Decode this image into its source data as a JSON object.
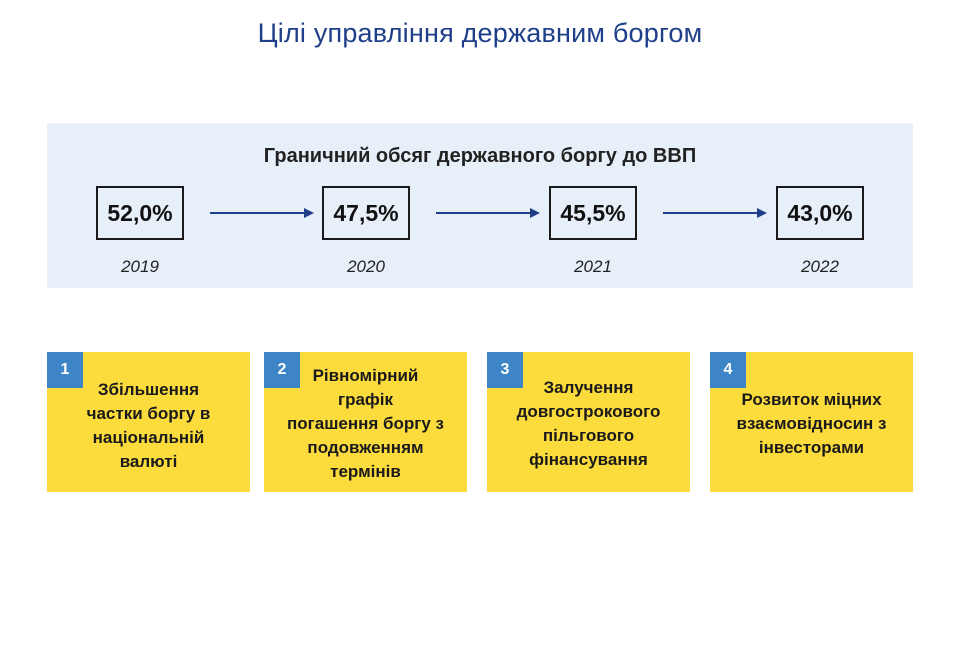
{
  "page": {
    "title": "Цілі управління державним боргом"
  },
  "debt_panel": {
    "title": "Граничний обсяг державного боргу до ВВП",
    "items": [
      {
        "value": "52,0%",
        "year": "2019"
      },
      {
        "value": "47,5%",
        "year": "2020"
      },
      {
        "value": "45,5%",
        "year": "2021"
      },
      {
        "value": "43,0%",
        "year": "2022"
      }
    ]
  },
  "goals": [
    {
      "number": "1",
      "text": "Збільшення\nчастки боргу в\nнаціональній\nвалюті"
    },
    {
      "number": "2",
      "text": "Рівномірний\nграфік\nпогашення боргу з\nподовженням\nтермінів"
    },
    {
      "number": "3",
      "text": "Залучення\nдовгострокового\nпільгового\nфінансування"
    },
    {
      "number": "4",
      "text": "Розвиток міцних\nвзаємовідносин з\nінвесторами"
    }
  ],
  "colors": {
    "title": "#1f3f8a",
    "panel_bg": "#e7eff8",
    "arrow": "#1f3f8a",
    "card_bg": "#fcdb3c",
    "badge_bg": "#3d85c6"
  },
  "icons": {
    "arrow": "arrow-right-icon"
  }
}
